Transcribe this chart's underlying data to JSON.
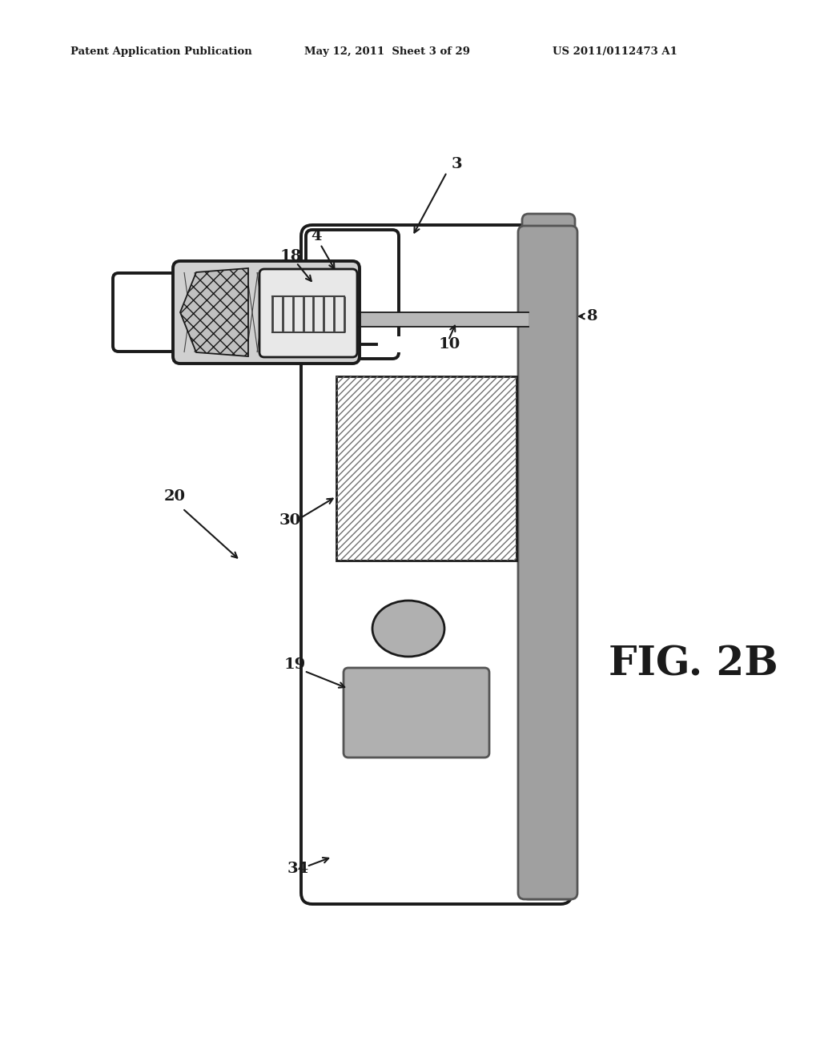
{
  "bg_color": "#ffffff",
  "header_left": "Patent Application Publication",
  "header_mid": "May 12, 2011  Sheet 3 of 29",
  "header_right": "US 2011/0112473 A1",
  "fig_label": "FIG. 2B",
  "dark": "#1a1a1a",
  "gray_light": "#b8b8b8",
  "gray_med": "#909090",
  "gray_dark": "#555555",
  "gray_stripe": "#a0a0a0",
  "gray_btn": "#b0b0b0"
}
